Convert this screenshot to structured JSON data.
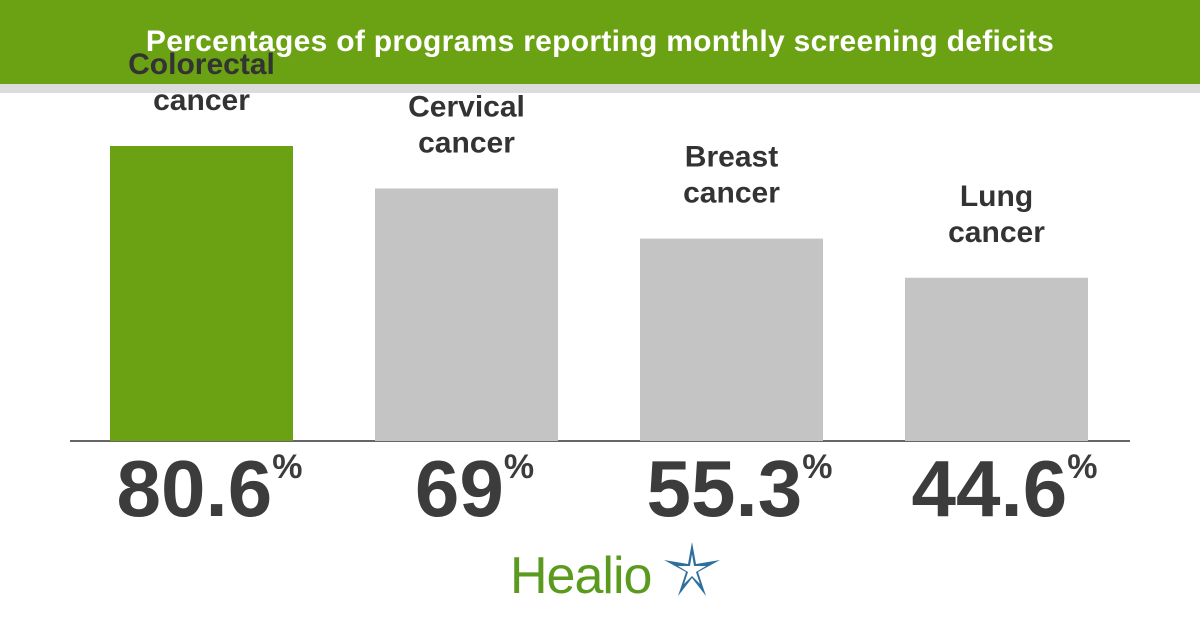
{
  "title": "Percentages of programs reporting monthly screening deficits",
  "colors": {
    "highlight": "#6aa213",
    "default": "#c4c4c4",
    "text": "#3c3c3c"
  },
  "chart_data": {
    "type": "bar",
    "title": "Percentages of programs reporting monthly screening deficits",
    "categories": [
      [
        "Colorectal",
        "cancer"
      ],
      [
        "Cervical",
        "cancer"
      ],
      [
        "Breast",
        "cancer"
      ],
      [
        "Lung",
        "cancer"
      ]
    ],
    "values": [
      80.6,
      69,
      55.3,
      44.6
    ],
    "value_labels": [
      "80.6",
      "69",
      "55.3",
      "44.6"
    ],
    "unit": "%",
    "highlight_index": 0,
    "xlabel": "",
    "ylabel": "",
    "ylim": [
      0,
      100
    ]
  },
  "logo": {
    "text": "Healio",
    "icon": "star-icon"
  }
}
